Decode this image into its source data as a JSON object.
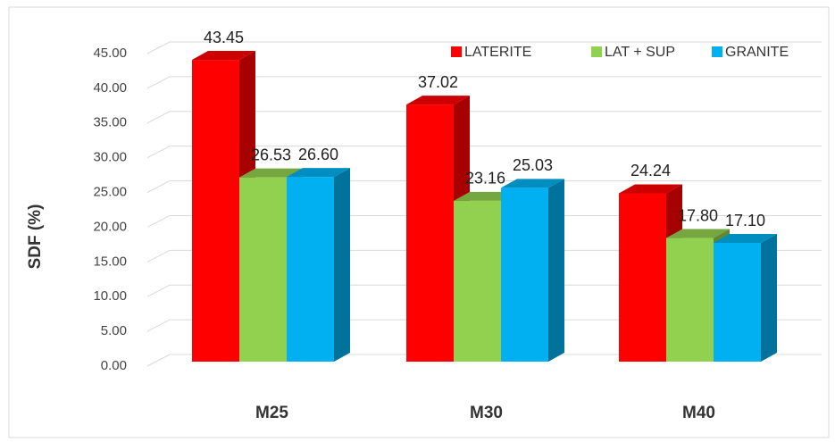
{
  "chart_data": {
    "type": "bar3d",
    "y_label": "SDF (%)",
    "categories": [
      "M25",
      "M30",
      "M40"
    ],
    "series": [
      {
        "name": "LATERITE",
        "color": "#ff0000",
        "values": [
          43.45,
          37.02,
          24.24
        ],
        "value_labels": [
          "43.45",
          "37.02",
          "24.24"
        ]
      },
      {
        "name": "LAT + SUP",
        "color": "#92d050",
        "values": [
          26.53,
          23.16,
          17.8
        ],
        "value_labels": [
          "26.53",
          "23.16",
          "17.80"
        ]
      },
      {
        "name": "GRANITE",
        "color": "#00b0f0",
        "values": [
          26.6,
          25.03,
          17.1
        ],
        "value_labels": [
          "26.60",
          "25.03",
          "17.10"
        ]
      }
    ],
    "ylim": [
      0,
      45
    ],
    "yticks": [
      {
        "value": 0,
        "label": "0.00"
      },
      {
        "value": 5,
        "label": "5.00"
      },
      {
        "value": 10,
        "label": "10.00"
      },
      {
        "value": 15,
        "label": "15.00"
      },
      {
        "value": 20,
        "label": "20.00"
      },
      {
        "value": 25,
        "label": "25.00"
      },
      {
        "value": 30,
        "label": "30.00"
      },
      {
        "value": 35,
        "label": "35.00"
      },
      {
        "value": 40,
        "label": "40.00"
      },
      {
        "value": 45,
        "label": "45.00"
      }
    ],
    "grid": true,
    "legend": "top-right"
  }
}
